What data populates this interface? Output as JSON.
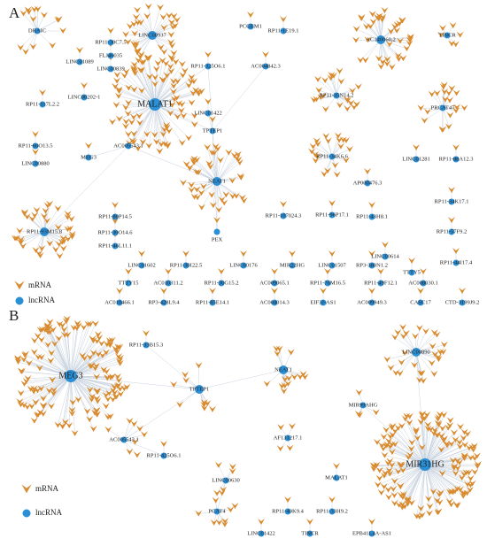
{
  "panels": [
    {
      "label": "A",
      "nodes": [
        {
          "label": "DRAIC"
        },
        {
          "label": "LINC00937"
        },
        {
          "label": "PCGEM1"
        },
        {
          "label": "RP11-1E19.1"
        },
        {
          "label": "AC140060.2"
        },
        {
          "label": "TINCR"
        },
        {
          "label": "RP11-30C7.5"
        },
        {
          "label": "FLJ46035"
        },
        {
          "label": "LINC01089"
        },
        {
          "label": "LINC00839"
        },
        {
          "label": "LINC00202-1"
        },
        {
          "label": "RP11-117L2.2"
        },
        {
          "label": "MALAT1"
        },
        {
          "label": "RP11-325O6.1"
        },
        {
          "label": "AC004842.3"
        },
        {
          "label": "LINC01422"
        },
        {
          "label": "TPTEP1"
        },
        {
          "label": "RP11-35N14.2"
        },
        {
          "label": "PRCAT47"
        },
        {
          "label": "AC005543.1"
        },
        {
          "label": "RP11-34K6.6"
        },
        {
          "label": "RP11-60O13.5"
        },
        {
          "label": "LINC00880"
        },
        {
          "label": "MEG3"
        },
        {
          "label": "NEAT1"
        },
        {
          "label": "LINC01281"
        },
        {
          "label": "RP11-88A12.3"
        },
        {
          "label": "AP000476.3"
        },
        {
          "label": "RP11-34K17.1"
        },
        {
          "label": "RP11-93M15.8"
        },
        {
          "label": "RP11-80P14.5"
        },
        {
          "label": "RP11-30O14.6"
        },
        {
          "label": "RP11-46L11.1"
        },
        {
          "label": "RP11-107024.3"
        },
        {
          "label": "RP11-96P17.1"
        },
        {
          "label": "RP11-43H8.1"
        },
        {
          "label": "RP11-57F9.2"
        },
        {
          "label": "PEX"
        },
        {
          "label": "LINC00614"
        },
        {
          "label": "TTTY5"
        },
        {
          "label": "RP11-44I17.4"
        },
        {
          "label": "LINC01602"
        },
        {
          "label": "RP11-30I22.5"
        },
        {
          "label": "LINC00176"
        },
        {
          "label": "MIR22HG"
        },
        {
          "label": "LINC01507"
        },
        {
          "label": "RP3-380N1.2"
        },
        {
          "label": "TTTY15"
        },
        {
          "label": "AC010311.2"
        },
        {
          "label": "RP11-30G15.2"
        },
        {
          "label": "AC009065.1"
        },
        {
          "label": "RP11-76M16.5"
        },
        {
          "label": "RP11-49F12.1"
        },
        {
          "label": "AC008030.1"
        },
        {
          "label": "AC010466.1"
        },
        {
          "label": "RP3-428L9.4"
        },
        {
          "label": "RP11-85E14.1"
        },
        {
          "label": "AC004014.3"
        },
        {
          "label": "EIF3J-AS1"
        },
        {
          "label": "AC009949.3"
        },
        {
          "label": "CASC17"
        },
        {
          "label": "CTD-3199J9.2"
        }
      ],
      "legend": [
        {
          "label": "mRNA"
        },
        {
          "label": "lncRNA"
        }
      ]
    },
    {
      "label": "B",
      "nodes": [
        {
          "label": "MEG3"
        },
        {
          "label": "RP11-33B15.3"
        },
        {
          "label": "TPTEP1"
        },
        {
          "label": "NEAT1"
        },
        {
          "label": "LINC00890"
        },
        {
          "label": "MIR99AHG"
        },
        {
          "label": "AF131217.1"
        },
        {
          "label": "AC005543.1"
        },
        {
          "label": "RP11-425O6.1"
        },
        {
          "label": "LINC00630"
        },
        {
          "label": "MALAT1"
        },
        {
          "label": "MIR31HG"
        },
        {
          "label": "PCAT4"
        },
        {
          "label": "RP11-40K9.4"
        },
        {
          "label": "RP11-33H9.2"
        },
        {
          "label": "LINC01422"
        },
        {
          "label": "TINCR"
        },
        {
          "label": "EPB41L4A-AS1"
        }
      ],
      "legend": [
        {
          "label": "mRNA"
        },
        {
          "label": "lncRNA"
        }
      ]
    }
  ]
}
